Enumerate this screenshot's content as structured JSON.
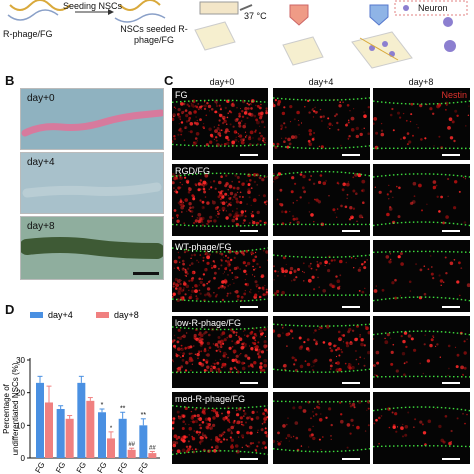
{
  "panel_a": {
    "labels": [
      "Seeding NSCs",
      "R-phage/FG",
      "NSCs seeded R-phage/FG",
      "37 °C",
      "Neuron"
    ]
  },
  "panel_b": {
    "letter": "B",
    "images": [
      {
        "label": "day+0",
        "bg": "#8fb2c0",
        "fiber": "#d77a9d"
      },
      {
        "label": "day+4",
        "bg": "#a8c1cb",
        "fiber": "#b9cdd4"
      },
      {
        "label": "day+8",
        "bg": "#8fae9e",
        "fiber": "#3e5a35"
      }
    ]
  },
  "panel_c": {
    "letter": "C",
    "columns": [
      "day+0",
      "day+4",
      "day+8"
    ],
    "stain_label": "Nestin",
    "rows": [
      "FG",
      "RGD/FG",
      "WT-phage/FG",
      "low-R-phage/FG",
      "med-R-phage/FG"
    ],
    "density": [
      [
        0.9,
        0.35,
        0.2
      ],
      [
        0.85,
        0.3,
        0.15
      ],
      [
        0.9,
        0.3,
        0.15
      ],
      [
        0.9,
        0.4,
        0.2
      ],
      [
        0.85,
        0.25,
        0.15
      ]
    ]
  },
  "panel_d": {
    "letter": "D",
    "chart_data": {
      "type": "bar",
      "ylabel": "Percentage of undifferentiated NSCs (%)",
      "ylim": [
        0,
        30
      ],
      "yticks": [
        0,
        10,
        20,
        30
      ],
      "categories": [
        "FG",
        "FG",
        "FG",
        "FG",
        "FG",
        "FG"
      ],
      "series": [
        {
          "name": "day+4",
          "color": "#4a90e2",
          "values": [
            23,
            15,
            23,
            14,
            12,
            10
          ],
          "errors": [
            2,
            1,
            2,
            1,
            2,
            2
          ]
        },
        {
          "name": "day+8",
          "color": "#f08080",
          "values": [
            17,
            12,
            17.5,
            6,
            2.5,
            1.5
          ],
          "errors": [
            5,
            1,
            1,
            2,
            0.5,
            0.5
          ]
        }
      ],
      "significance_day4": [
        "",
        "",
        "",
        "*",
        "**",
        "**"
      ],
      "significance_day8": [
        "",
        "",
        "",
        "*",
        "##",
        "##"
      ]
    }
  }
}
